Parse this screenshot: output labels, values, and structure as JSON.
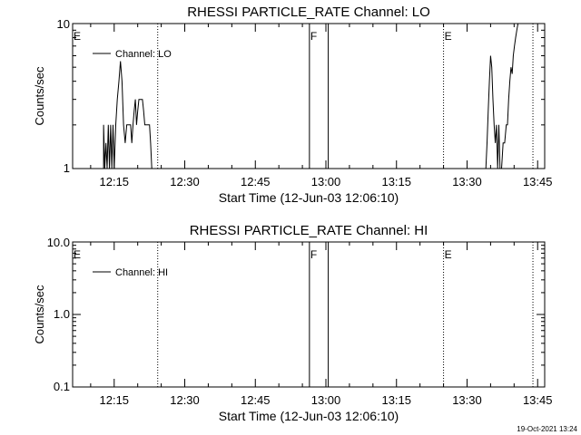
{
  "footer": {
    "date": "19-Oct-2021 13:24"
  },
  "chart_data": [
    {
      "type": "line",
      "title": "RHESSI PARTICLE_RATE Channel: LO",
      "xlabel": "Start Time (12-Jun-03 12:06:10)",
      "ylabel": "Counts/sec",
      "yscale": "log",
      "ylim": [
        1,
        10
      ],
      "y_ticks": [
        "1",
        "10"
      ],
      "xlim": [
        "12:06:10",
        "13:46:30"
      ],
      "x_ticks": [
        "12:15",
        "12:30",
        "12:45",
        "13:00",
        "13:15",
        "13:30",
        "13:45"
      ],
      "legend": {
        "position": "top-left",
        "entries": [
          "Channel: LO"
        ]
      },
      "grid": false,
      "series": [
        {
          "name": "Channel: LO",
          "x": [
            "12:12:45",
            "12:12:45",
            "12:13:00",
            "12:13:15",
            "12:13:30",
            "12:13:45",
            "12:14:00",
            "12:14:15",
            "12:14:30",
            "12:14:45",
            "12:15:00",
            "12:15:20",
            "12:15:40",
            "12:16:00",
            "12:16:20",
            "12:16:40",
            "12:17:00",
            "12:17:20",
            "12:17:40",
            "12:18:00",
            "12:18:15",
            "12:18:30",
            "12:18:45",
            "12:19:00",
            "12:19:15",
            "12:19:30",
            "12:19:45",
            "12:20:00",
            "12:20:15",
            "12:20:30",
            "12:20:45",
            "12:21:00",
            "12:21:15",
            "12:21:30",
            "12:21:45",
            "12:22:00",
            "12:22:15",
            "12:22:30",
            "12:22:45",
            "12:23:00",
            "12:23:10",
            "12:23:20",
            "13:34:00",
            "13:34:15",
            "13:34:30",
            "13:34:45",
            "13:35:00",
            "13:35:15",
            "13:35:30",
            "13:35:45",
            "13:36:00",
            "13:36:15",
            "13:36:30",
            "13:36:45",
            "13:37:00",
            "13:37:20",
            "13:37:40",
            "13:38:00",
            "13:38:20",
            "13:38:35",
            "13:38:50",
            "13:39:05",
            "13:39:20",
            "13:39:35",
            "13:39:50",
            "13:40:05",
            "13:40:20",
            "13:40:35",
            "13:40:50"
          ],
          "values": [
            1.0,
            2.0,
            1.0,
            1.5,
            1.0,
            2.0,
            1.0,
            2.0,
            1.0,
            2.0,
            1.0,
            2.0,
            3.0,
            4.0,
            5.5,
            4.0,
            2.0,
            1.5,
            2.0,
            2.0,
            2.0,
            2.0,
            1.5,
            2.0,
            2.5,
            3.0,
            2.0,
            2.5,
            3.0,
            3.0,
            3.0,
            3.0,
            2.5,
            2.0,
            2.0,
            2.0,
            2.0,
            2.0,
            1.5,
            1.0,
            1.0,
            1.0,
            1.0,
            1.5,
            2.5,
            4.0,
            6.0,
            5.0,
            3.0,
            2.0,
            1.5,
            2.0,
            1.0,
            2.0,
            1.0,
            1.0,
            1.5,
            1.5,
            2.0,
            2.0,
            3.0,
            4.0,
            5.0,
            4.5,
            6.0,
            7.0,
            8.0,
            9.0,
            10.0
          ]
        }
      ],
      "vertical_markers": [
        {
          "time": "12:24:15",
          "style": "dotted",
          "label": ""
        },
        {
          "time": "12:56:30",
          "style": "solid",
          "label": "F"
        },
        {
          "time": "13:00:30",
          "style": "solid",
          "label": ""
        },
        {
          "time": "13:25:00",
          "style": "dotted",
          "label": "E"
        },
        {
          "time": "13:44:00",
          "style": "dotted",
          "label": ""
        }
      ],
      "edge_labels": {
        "left": "E"
      }
    },
    {
      "type": "line",
      "title": "RHESSI PARTICLE_RATE Channel: HI",
      "xlabel": "Start Time (12-Jun-03 12:06:10)",
      "ylabel": "Counts/sec",
      "yscale": "log",
      "ylim": [
        0.1,
        10.0
      ],
      "y_ticks": [
        "0.1",
        "1.0",
        "10.0"
      ],
      "xlim": [
        "12:06:10",
        "13:46:30"
      ],
      "x_ticks": [
        "12:15",
        "12:30",
        "12:45",
        "13:00",
        "13:15",
        "13:30",
        "13:45"
      ],
      "legend": {
        "position": "top-left",
        "entries": [
          "Channel: HI"
        ]
      },
      "grid": false,
      "series": [
        {
          "name": "Channel: HI",
          "x": [],
          "values": []
        }
      ],
      "vertical_markers": [
        {
          "time": "12:24:15",
          "style": "dotted",
          "label": ""
        },
        {
          "time": "12:56:30",
          "style": "solid",
          "label": "F"
        },
        {
          "time": "13:00:30",
          "style": "solid",
          "label": ""
        },
        {
          "time": "13:25:00",
          "style": "dotted",
          "label": "E"
        },
        {
          "time": "13:44:00",
          "style": "dotted",
          "label": ""
        }
      ],
      "edge_labels": {
        "left": "E"
      }
    }
  ]
}
